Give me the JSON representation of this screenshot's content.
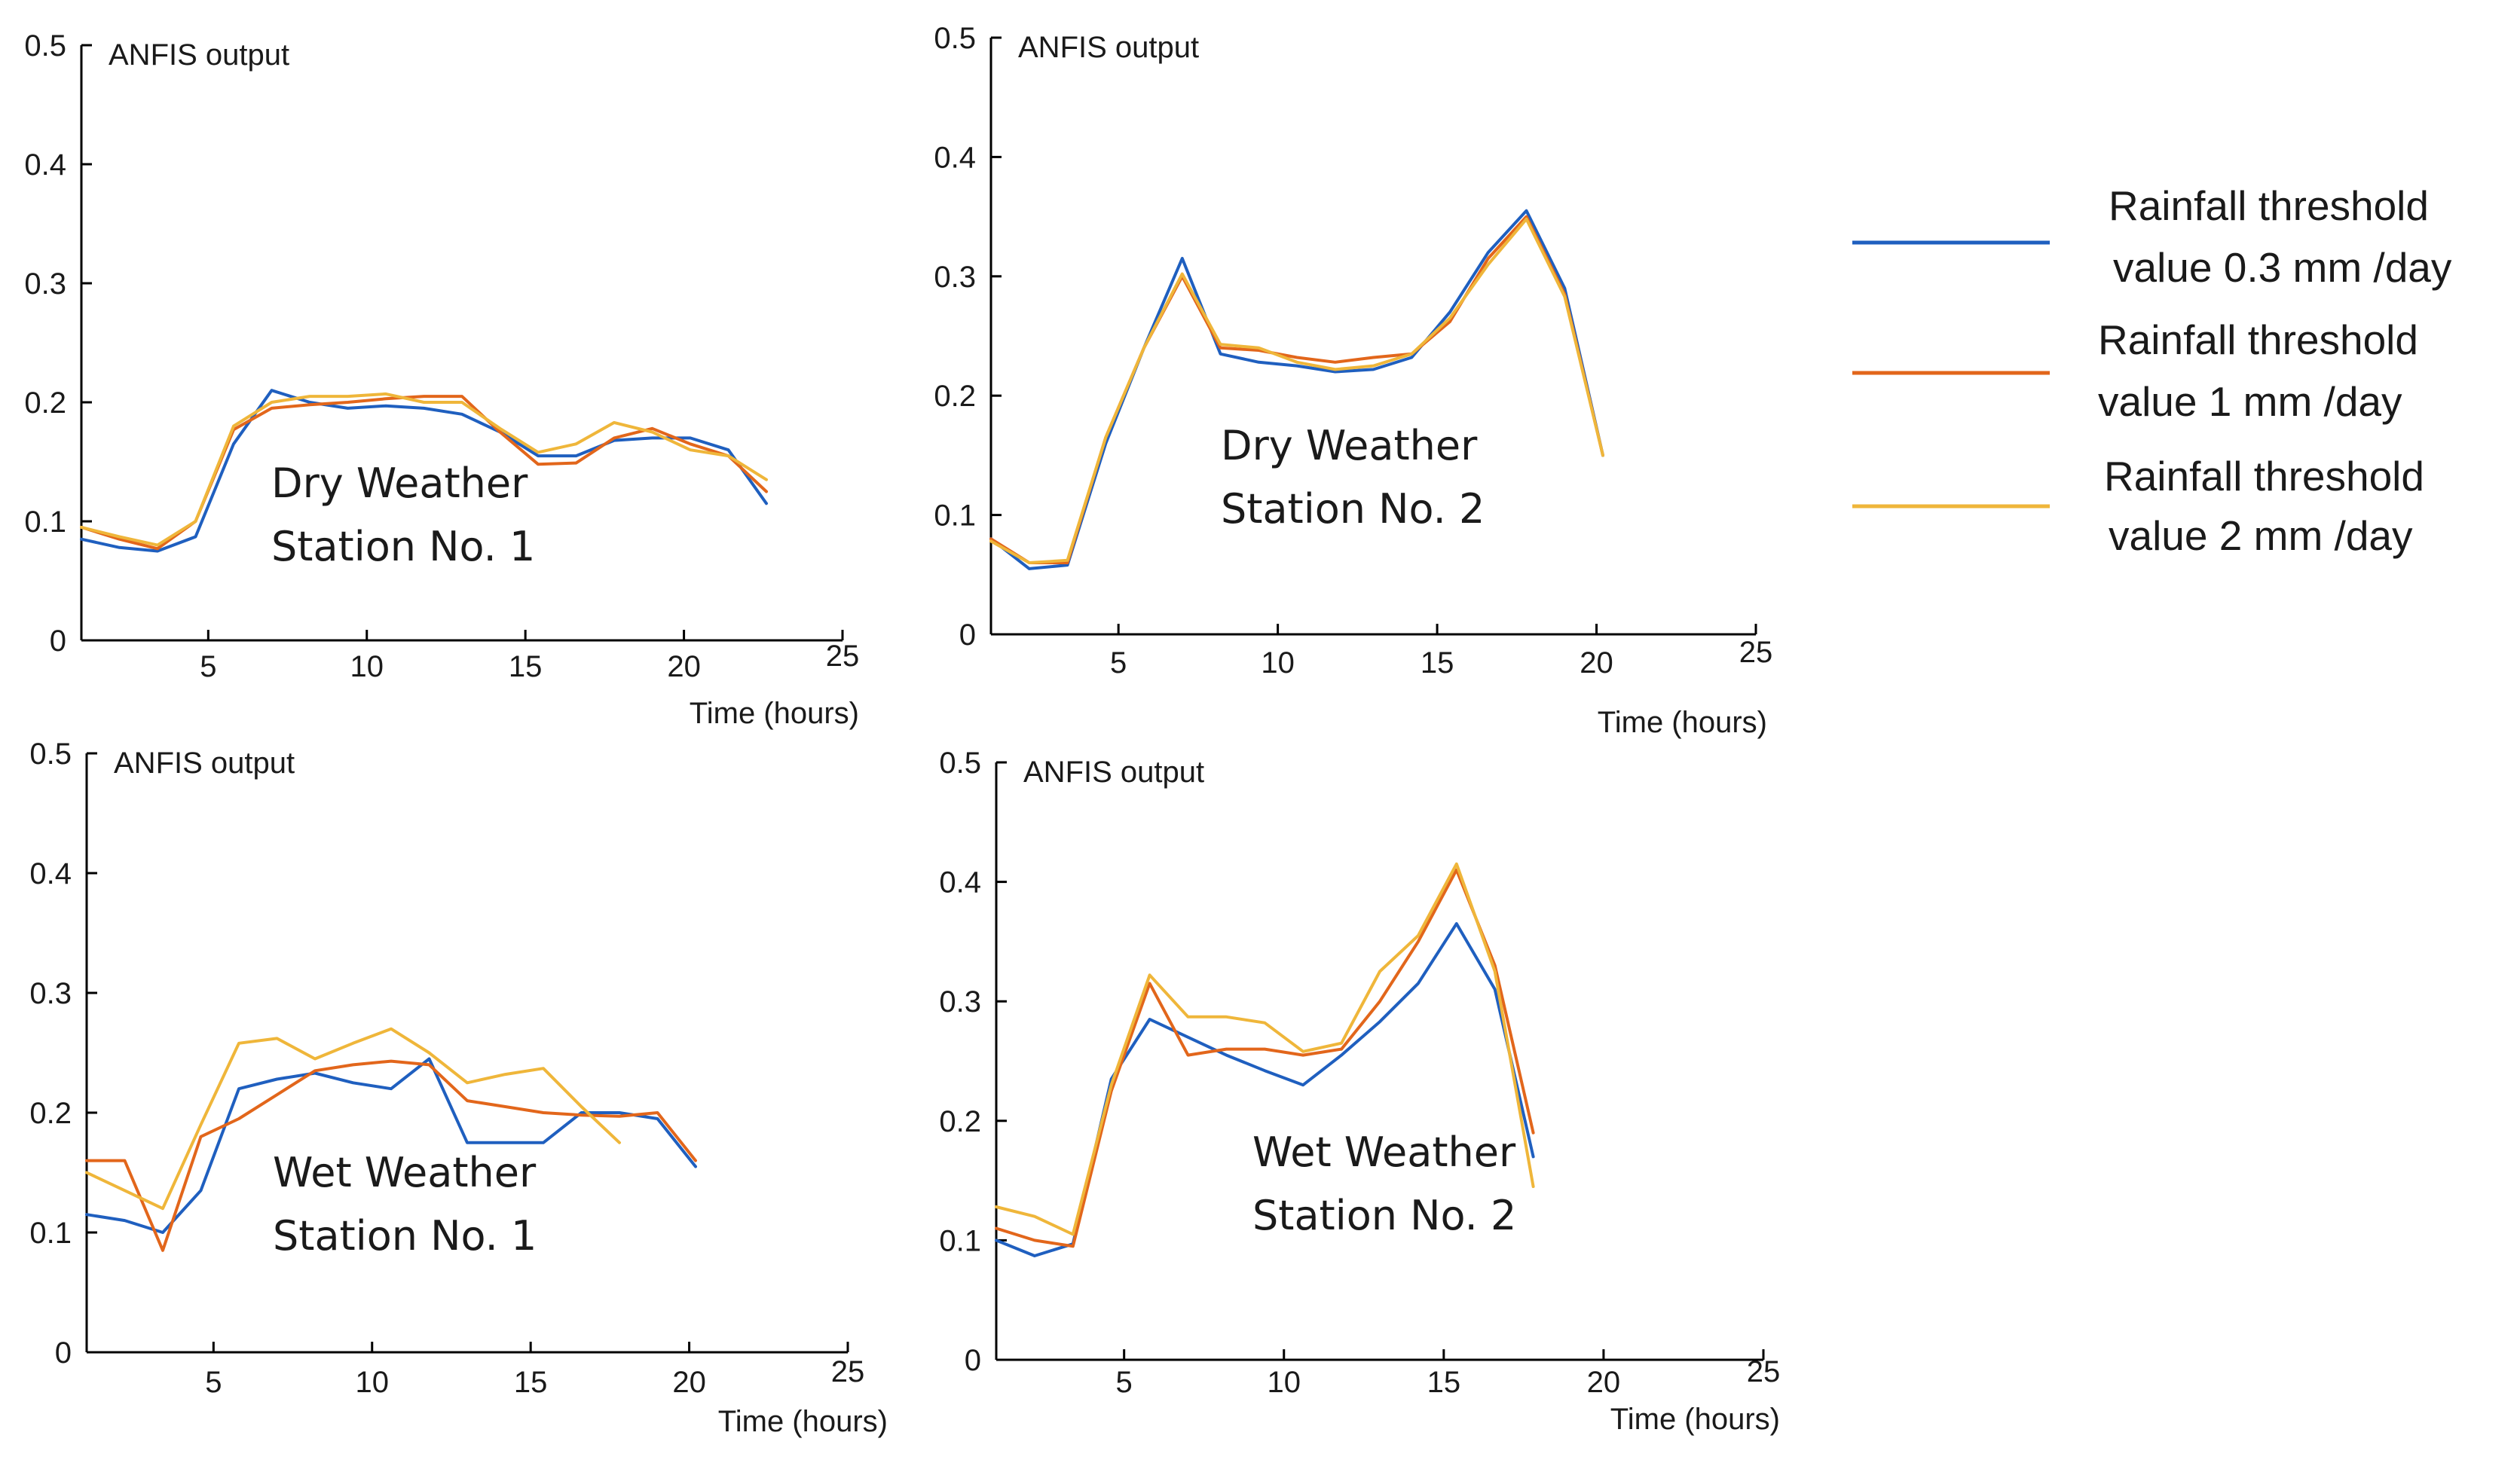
{
  "chart_data": [
    {
      "type": "line",
      "name": "dry-station-1",
      "ylabel": "ANFIS output",
      "xlabel": "Time (hours)",
      "annotation": [
        "Dry Weather",
        "Station No. 1"
      ],
      "xlim": [
        1,
        25
      ],
      "ylim": [
        0,
        0.5
      ],
      "xticks": [
        5,
        10,
        15,
        20,
        25
      ],
      "yticks": [
        0,
        0.1,
        0.2,
        0.3,
        0.4,
        0.5
      ],
      "ytick_labels": [
        "0",
        "0.1",
        "0.2",
        "0.3",
        "0.4",
        "0.5"
      ],
      "x": [
        1,
        2.2,
        3.4,
        4.6,
        5.8,
        7,
        8.2,
        9.4,
        10.6,
        11.8,
        13,
        14.2,
        15.4,
        16.6,
        17.8,
        19,
        20.2,
        21.4,
        22.6
      ],
      "series": [
        {
          "name": "Rainfall threshold value 0.3 mm /day",
          "color": "#1f5fbf",
          "values": [
            0.085,
            0.078,
            0.075,
            0.087,
            0.165,
            0.21,
            0.2,
            0.195,
            0.197,
            0.195,
            0.19,
            0.175,
            0.155,
            0.155,
            0.168,
            0.17,
            0.17,
            0.16,
            0.115
          ]
        },
        {
          "name": "Rainfall threshold value 1 mm /day",
          "color": "#e2661b",
          "values": [
            0.095,
            0.085,
            0.077,
            0.1,
            0.177,
            0.195,
            0.198,
            0.2,
            0.203,
            0.205,
            0.205,
            0.175,
            0.148,
            0.149,
            0.17,
            0.178,
            0.165,
            0.155,
            0.125
          ]
        },
        {
          "name": "Rainfall threshold value 2 mm /day",
          "color": "#efb63a",
          "values": [
            0.095,
            0.087,
            0.08,
            0.1,
            0.18,
            0.2,
            0.205,
            0.205,
            0.207,
            0.2,
            0.2,
            0.178,
            0.158,
            0.165,
            0.183,
            0.175,
            0.16,
            0.155,
            0.135
          ]
        }
      ]
    },
    {
      "type": "line",
      "name": "dry-station-2",
      "ylabel": "ANFIS output",
      "xlabel": "Time (hours)",
      "annotation": [
        "Dry Weather",
        "Station No. 2"
      ],
      "xlim": [
        1,
        25
      ],
      "ylim": [
        0,
        0.5
      ],
      "xticks": [
        5,
        10,
        15,
        20,
        25
      ],
      "yticks": [
        0,
        0.1,
        0.2,
        0.3,
        0.4,
        0.5
      ],
      "ytick_labels": [
        "0",
        "0.1",
        "0.2",
        "0.3",
        "0.4",
        "0.5"
      ],
      "x": [
        1,
        2.2,
        3.4,
        4.6,
        5.8,
        7,
        8.2,
        9.4,
        10.6,
        11.8,
        13,
        14.2,
        15.4,
        16.6,
        17.8,
        19,
        20.2,
        21.4,
        22.6
      ],
      "series": [
        {
          "name": "Rainfall threshold value 0.3 mm /day",
          "color": "#1f5fbf",
          "values": [
            0.08,
            0.055,
            0.058,
            0.16,
            0.24,
            0.315,
            0.235,
            0.228,
            0.225,
            0.22,
            0.222,
            0.232,
            0.27,
            0.32,
            0.355,
            0.29,
            0.15,
            null,
            null
          ]
        },
        {
          "name": "Rainfall threshold value 1 mm /day",
          "color": "#e2661b",
          "values": [
            0.08,
            0.06,
            0.06,
            0.165,
            0.24,
            0.3,
            0.24,
            0.238,
            0.232,
            0.228,
            0.232,
            0.235,
            0.262,
            0.315,
            0.35,
            0.285,
            0.15,
            null,
            null
          ]
        },
        {
          "name": "Rainfall threshold value 2 mm /day",
          "color": "#efb63a",
          "values": [
            0.078,
            0.06,
            0.062,
            0.165,
            0.24,
            0.302,
            0.243,
            0.24,
            0.228,
            0.222,
            0.225,
            0.235,
            0.265,
            0.31,
            0.348,
            0.283,
            0.15,
            null,
            null
          ]
        }
      ]
    },
    {
      "type": "line",
      "name": "wet-station-1",
      "ylabel": "ANFIS output",
      "xlabel": "Time (hours)",
      "annotation": [
        "Wet Weather",
        "Station No. 1"
      ],
      "xlim": [
        1,
        25
      ],
      "ylim": [
        0,
        0.5
      ],
      "xticks": [
        5,
        10,
        15,
        20,
        25
      ],
      "yticks": [
        0,
        0.1,
        0.2,
        0.3,
        0.4,
        0.5
      ],
      "ytick_labels": [
        "0",
        "0.1",
        "0.2",
        "0.3",
        "0.4",
        "0.5"
      ],
      "x": [
        1,
        2.2,
        3.4,
        4.6,
        5.8,
        7,
        8.2,
        9.4,
        10.6,
        11.8,
        13,
        14.2,
        15.4,
        16.6,
        17.8,
        19,
        20.2,
        21.4,
        22.6
      ],
      "series": [
        {
          "name": "Rainfall threshold value 0.3 mm /day",
          "color": "#1f5fbf",
          "values": [
            0.115,
            0.11,
            0.1,
            0.135,
            0.22,
            0.228,
            0.233,
            0.225,
            0.22,
            0.245,
            0.175,
            0.175,
            0.175,
            0.2,
            0.2,
            0.195,
            0.155,
            null,
            null
          ]
        },
        {
          "name": "Rainfall threshold value 1 mm /day",
          "color": "#e2661b",
          "values": [
            0.16,
            0.16,
            0.085,
            0.18,
            0.195,
            0.215,
            0.235,
            0.24,
            0.243,
            0.24,
            0.21,
            0.205,
            0.2,
            0.198,
            0.197,
            0.2,
            0.16,
            null,
            null
          ]
        },
        {
          "name": "Rainfall threshold value 2 mm /day",
          "color": "#efb63a",
          "values": [
            0.15,
            0.135,
            0.12,
            0.19,
            0.258,
            0.262,
            0.245,
            0.258,
            0.27,
            0.25,
            0.225,
            0.232,
            0.237,
            0.205,
            0.175,
            null,
            null,
            null,
            null
          ]
        }
      ]
    },
    {
      "type": "line",
      "name": "wet-station-2",
      "ylabel": "ANFIS output",
      "xlabel": "Time (hours)",
      "annotation": [
        "Wet Weather",
        "Station No. 2"
      ],
      "xlim": [
        1,
        25
      ],
      "ylim": [
        0,
        0.5
      ],
      "xticks": [
        5,
        10,
        15,
        20,
        25
      ],
      "yticks": [
        0,
        0.1,
        0.2,
        0.3,
        0.4,
        0.5
      ],
      "ytick_labels": [
        "0",
        "0.1",
        "0.2",
        "0.3",
        "0.4",
        "0.5"
      ],
      "x": [
        1,
        2.2,
        3.4,
        4.6,
        5.8,
        7,
        8.2,
        9.4,
        10.6,
        11.8,
        13,
        14.2,
        15.4,
        16.6,
        17.8,
        19,
        20.2,
        21.4,
        22.6
      ],
      "series": [
        {
          "name": "Rainfall threshold value 0.3 mm /day",
          "color": "#1f5fbf",
          "values": [
            0.1,
            0.087,
            0.097,
            0.235,
            0.285,
            0.27,
            0.255,
            0.242,
            0.23,
            0.255,
            0.283,
            0.315,
            0.365,
            0.31,
            0.17,
            null,
            null,
            null,
            null
          ]
        },
        {
          "name": "Rainfall threshold value 1 mm /day",
          "color": "#e2661b",
          "values": [
            0.11,
            0.1,
            0.095,
            0.225,
            0.315,
            0.255,
            0.26,
            0.26,
            0.255,
            0.26,
            0.3,
            0.35,
            0.41,
            0.33,
            0.19,
            null,
            null,
            null,
            null
          ]
        },
        {
          "name": "Rainfall threshold value 2 mm /day",
          "color": "#efb63a",
          "values": [
            0.128,
            0.12,
            0.105,
            0.23,
            0.322,
            0.287,
            0.287,
            0.282,
            0.258,
            0.265,
            0.325,
            0.355,
            0.415,
            0.325,
            0.145,
            null,
            null,
            null,
            null
          ]
        }
      ]
    }
  ],
  "legend": [
    {
      "color": "#1f5fbf",
      "line1": "Rainfall threshold",
      "line2": "value 0.3 mm /day"
    },
    {
      "color": "#e2661b",
      "line1": "Rainfall threshold",
      "line2": "value 1 mm /day"
    },
    {
      "color": "#efb63a",
      "line1": "Rainfall threshold",
      "line2": "value 2 mm /day"
    }
  ]
}
